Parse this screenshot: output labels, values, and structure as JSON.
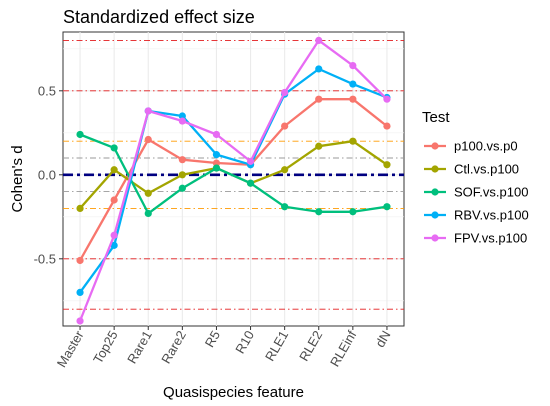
{
  "chart_data": {
    "type": "line",
    "title": "Standardized effect size",
    "xlabel": "Quasispecies feature",
    "ylabel": "Cohen's d",
    "categories": [
      "Master",
      "Top25",
      "Rare1",
      "Rare2",
      "R5",
      "R10",
      "RLE1",
      "RLE2",
      "RLEinf",
      "dN"
    ],
    "ylim": [
      -0.9,
      0.85
    ],
    "y_ticks": [
      -0.5,
      0.0,
      0.5
    ],
    "y_tick_labels": [
      "-0.5",
      "0.0",
      "0.5"
    ],
    "grid": true,
    "legend": {
      "title": "Test",
      "position": "right"
    },
    "reference_lines": [
      {
        "y": 0.8,
        "color": "#e31a1c",
        "style": "dashdot"
      },
      {
        "y": 0.5,
        "color": "#e31a1c",
        "style": "dashdot"
      },
      {
        "y": 0.2,
        "color": "#ff9a00",
        "style": "dashdot"
      },
      {
        "y": 0.1,
        "color": "#999999",
        "style": "dashdot"
      },
      {
        "y": 0.0,
        "color": "#000080",
        "style": "dashdot-bold"
      },
      {
        "y": -0.1,
        "color": "#999999",
        "style": "dashdot"
      },
      {
        "y": -0.2,
        "color": "#ff9a00",
        "style": "dashdot"
      },
      {
        "y": -0.5,
        "color": "#e31a1c",
        "style": "dashdot"
      },
      {
        "y": -0.8,
        "color": "#e31a1c",
        "style": "dashdot"
      }
    ],
    "series": [
      {
        "name": "p100.vs.p0",
        "color": "#F8766D",
        "values": [
          -0.51,
          -0.15,
          0.21,
          0.09,
          0.07,
          0.06,
          0.29,
          0.45,
          0.45,
          0.29
        ]
      },
      {
        "name": "Ctl.vs.p100",
        "color": "#A3A500",
        "values": [
          -0.2,
          0.03,
          -0.11,
          0.0,
          0.04,
          -0.05,
          0.03,
          0.17,
          0.2,
          0.06
        ]
      },
      {
        "name": "SOF.vs.p100",
        "color": "#00BF7D",
        "values": [
          0.24,
          0.16,
          -0.23,
          -0.08,
          0.04,
          -0.05,
          -0.19,
          -0.22,
          -0.22,
          -0.19
        ]
      },
      {
        "name": "RBV.vs.p100",
        "color": "#00B0F6",
        "values": [
          -0.7,
          -0.42,
          0.38,
          0.35,
          0.12,
          0.06,
          0.48,
          0.63,
          0.54,
          0.46
        ]
      },
      {
        "name": "FPV.vs.p100",
        "color": "#E76BF3",
        "values": [
          -0.87,
          -0.36,
          0.38,
          0.32,
          0.24,
          0.08,
          0.49,
          0.8,
          0.65,
          0.45
        ]
      }
    ]
  }
}
